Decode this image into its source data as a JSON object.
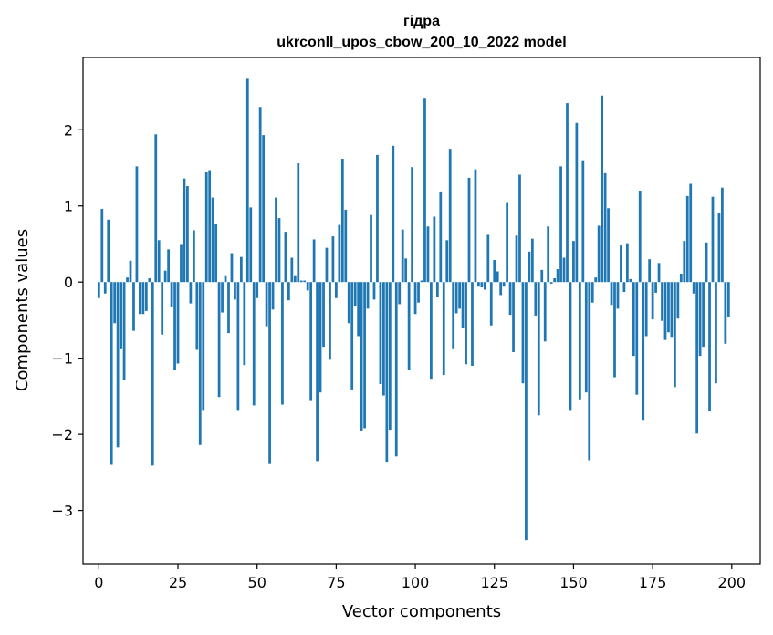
{
  "chart_data": {
    "type": "bar",
    "title_lines": [
      "гідра",
      "ukrconll_upos_cbow_200_10_2022 model"
    ],
    "xlabel": "Vector components",
    "ylabel": "Components values",
    "xlim": [
      -5,
      209
    ],
    "ylim": [
      -3.7,
      2.95
    ],
    "xticks": [
      0,
      25,
      50,
      75,
      100,
      125,
      150,
      175,
      200
    ],
    "xtick_labels": [
      "0",
      "25",
      "50",
      "75",
      "100",
      "125",
      "150",
      "175",
      "200"
    ],
    "yticks": [
      -3,
      -2,
      -1,
      0,
      1,
      2
    ],
    "ytick_labels": [
      "−3",
      "−2",
      "−1",
      "0",
      "1",
      "2"
    ],
    "grid": false,
    "color": "#1f77b4",
    "values": [
      -0.21,
      0.96,
      -0.15,
      0.82,
      -2.4,
      -0.54,
      -2.17,
      -0.87,
      -1.29,
      0.06,
      0.28,
      -0.64,
      1.52,
      -0.42,
      -0.42,
      -0.38,
      0.05,
      -2.41,
      1.94,
      0.55,
      -0.69,
      0.15,
      0.43,
      -0.32,
      -1.16,
      -1.07,
      0.5,
      1.36,
      1.26,
      -0.28,
      0.68,
      -0.89,
      -2.14,
      -1.68,
      1.44,
      1.47,
      1.11,
      0.76,
      -1.51,
      -0.4,
      0.09,
      -0.67,
      0.38,
      -0.23,
      -1.68,
      0.33,
      -1.09,
      2.67,
      0.98,
      -1.62,
      -0.21,
      2.3,
      1.93,
      -0.58,
      -2.39,
      -0.36,
      1.11,
      0.84,
      -1.61,
      0.66,
      -0.24,
      0.32,
      0.09,
      1.56,
      0.02,
      0.02,
      -0.11,
      -1.55,
      0.56,
      -2.35,
      -1.45,
      -0.85,
      0.45,
      -1.02,
      0.6,
      -0.21,
      0.75,
      1.62,
      0.95,
      -0.54,
      -1.41,
      -0.31,
      -0.71,
      -1.95,
      -1.92,
      -0.35,
      0.88,
      -0.23,
      1.67,
      -1.34,
      -1.49,
      -2.36,
      -1.94,
      1.79,
      -2.29,
      -0.29,
      0.69,
      0.31,
      -1.15,
      1.51,
      -0.42,
      -0.27,
      0.02,
      2.42,
      0.73,
      -1.27,
      0.86,
      -0.2,
      1.19,
      -1.22,
      0.55,
      1.75,
      -0.87,
      -0.41,
      -0.35,
      -0.6,
      -1.08,
      1.37,
      -1.1,
      1.48,
      -0.06,
      -0.07,
      -0.1,
      0.62,
      -0.57,
      0.29,
      0.14,
      -0.17,
      -0.06,
      1.05,
      -0.43,
      -0.92,
      0.61,
      1.41,
      -1.33,
      -3.39,
      0.4,
      0.57,
      -0.44,
      -1.75,
      0.16,
      -0.78,
      0.73,
      -0.02,
      0.05,
      0.17,
      1.52,
      0.32,
      2.35,
      -1.68,
      0.54,
      2.09,
      -1.54,
      1.6,
      -1.45,
      -2.34,
      -0.27,
      0.06,
      0.74,
      2.45,
      1.43,
      0.97,
      -0.3,
      -1.25,
      -0.35,
      0.48,
      -0.13,
      0.51,
      0.04,
      -0.97,
      -1.48,
      1.2,
      -1.81,
      -0.71,
      0.3,
      -0.49,
      -0.14,
      0.25,
      -0.51,
      -0.76,
      -0.66,
      -0.72,
      -1.38,
      -0.48,
      0.11,
      0.54,
      1.13,
      1.29,
      -0.15,
      -1.99,
      -0.97,
      -0.85,
      0.52,
      -1.7,
      1.12,
      -1.33,
      0.91,
      1.24,
      -0.81,
      -0.46
    ]
  }
}
